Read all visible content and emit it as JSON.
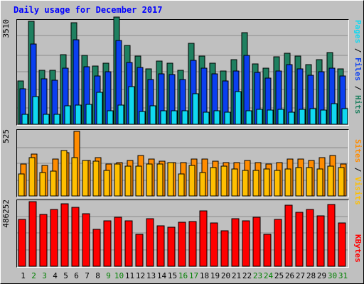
{
  "title": "Daily usage for December 2017",
  "colors": {
    "hits": "#1f8060",
    "files": "#0a3ff0",
    "pages": "#10d8f0",
    "visits": "#ffbf00",
    "sites": "#ff8c00",
    "kbytes": "#ff0000",
    "weekend_label": "#008000",
    "weekday_label": "#000000"
  },
  "chart_data": [
    {
      "type": "bar",
      "name": "hits-files-pages",
      "ytick_label": "3510",
      "ylim": [
        0,
        3510
      ],
      "grid": true,
      "series": [
        {
          "name": "Hits",
          "color_key": "hits",
          "values": [
            1480,
            3510,
            1830,
            1830,
            2380,
            3460,
            2350,
            1990,
            2080,
            3650,
            2680,
            2330,
            1900,
            2160,
            2070,
            1830,
            2770,
            2330,
            2090,
            1820,
            2210,
            3130,
            2060,
            1910,
            2310,
            2430,
            2330,
            2040,
            2210,
            2440,
            1880
          ]
        },
        {
          "name": "Files",
          "color_key": "files",
          "values": [
            1200,
            2730,
            1540,
            1500,
            1910,
            2880,
            1970,
            1640,
            1780,
            2850,
            2110,
            1940,
            1530,
            1730,
            1690,
            1530,
            2180,
            1920,
            1720,
            1470,
            1820,
            2350,
            1770,
            1580,
            1820,
            2040,
            1890,
            1680,
            1800,
            1920,
            1650
          ]
        },
        {
          "name": "Pages",
          "color_key": "pages",
          "values": [
            350,
            950,
            350,
            350,
            640,
            650,
            670,
            1080,
            450,
            650,
            1280,
            430,
            640,
            450,
            450,
            460,
            1050,
            400,
            460,
            400,
            1110,
            460,
            510,
            490,
            520,
            420,
            510,
            540,
            480,
            690,
            540
          ]
        }
      ]
    },
    {
      "type": "bar",
      "name": "sites-visits",
      "ytick_label": "525",
      "ylim": [
        0,
        525
      ],
      "grid": true,
      "series": [
        {
          "name": "Visits",
          "color_key": "visits",
          "values": [
            180,
            310,
            190,
            200,
            370,
            310,
            290,
            280,
            210,
            260,
            240,
            240,
            260,
            260,
            270,
            180,
            250,
            190,
            230,
            240,
            220,
            210,
            210,
            220,
            210,
            220,
            230,
            230,
            220,
            240,
            230
          ]
        },
        {
          "name": "Sites",
          "color_key": "sites",
          "values": [
            260,
            340,
            250,
            300,
            350,
            525,
            290,
            310,
            260,
            270,
            290,
            330,
            300,
            280,
            270,
            270,
            300,
            300,
            280,
            270,
            270,
            290,
            270,
            260,
            270,
            300,
            300,
            290,
            310,
            330,
            260
          ]
        }
      ]
    },
    {
      "type": "bar",
      "name": "kbytes",
      "ytick_label": "486252",
      "ylim": [
        0,
        486252
      ],
      "grid": true,
      "series": [
        {
          "name": "KBytes",
          "color_key": "kbytes",
          "values": [
            350000,
            486252,
            390000,
            430000,
            470000,
            445000,
            395000,
            280000,
            340000,
            370000,
            340000,
            240000,
            360000,
            305000,
            295000,
            330000,
            335000,
            415000,
            325000,
            265000,
            360000,
            340000,
            370000,
            240000,
            355000,
            460000,
            405000,
            425000,
            380000,
            465000,
            325000
          ]
        }
      ]
    }
  ],
  "x_days": [
    "1",
    "2",
    "3",
    "4",
    "5",
    "6",
    "7",
    "8",
    "9",
    "10",
    "11",
    "12",
    "13",
    "14",
    "15",
    "16",
    "17",
    "18",
    "19",
    "20",
    "21",
    "22",
    "23",
    "24",
    "25",
    "26",
    "27",
    "28",
    "29",
    "30",
    "31"
  ],
  "weekend_days": [
    2,
    3,
    9,
    10,
    16,
    17,
    23,
    24,
    30,
    31
  ],
  "right_labels": {
    "top": [
      {
        "text": "Pages",
        "color_key": "pages"
      },
      {
        "text": " / ",
        "color_key": "weekday_label"
      },
      {
        "text": "Files",
        "color_key": "files"
      },
      {
        "text": " / ",
        "color_key": "weekday_label"
      },
      {
        "text": "Hits",
        "color_key": "hits"
      }
    ],
    "mid": [
      {
        "text": "Sites",
        "color_key": "sites"
      },
      {
        "text": " / ",
        "color_key": "weekday_label"
      },
      {
        "text": "Visits",
        "color_key": "visits"
      }
    ],
    "bot": [
      {
        "text": "KBytes",
        "color_key": "kbytes"
      }
    ]
  }
}
